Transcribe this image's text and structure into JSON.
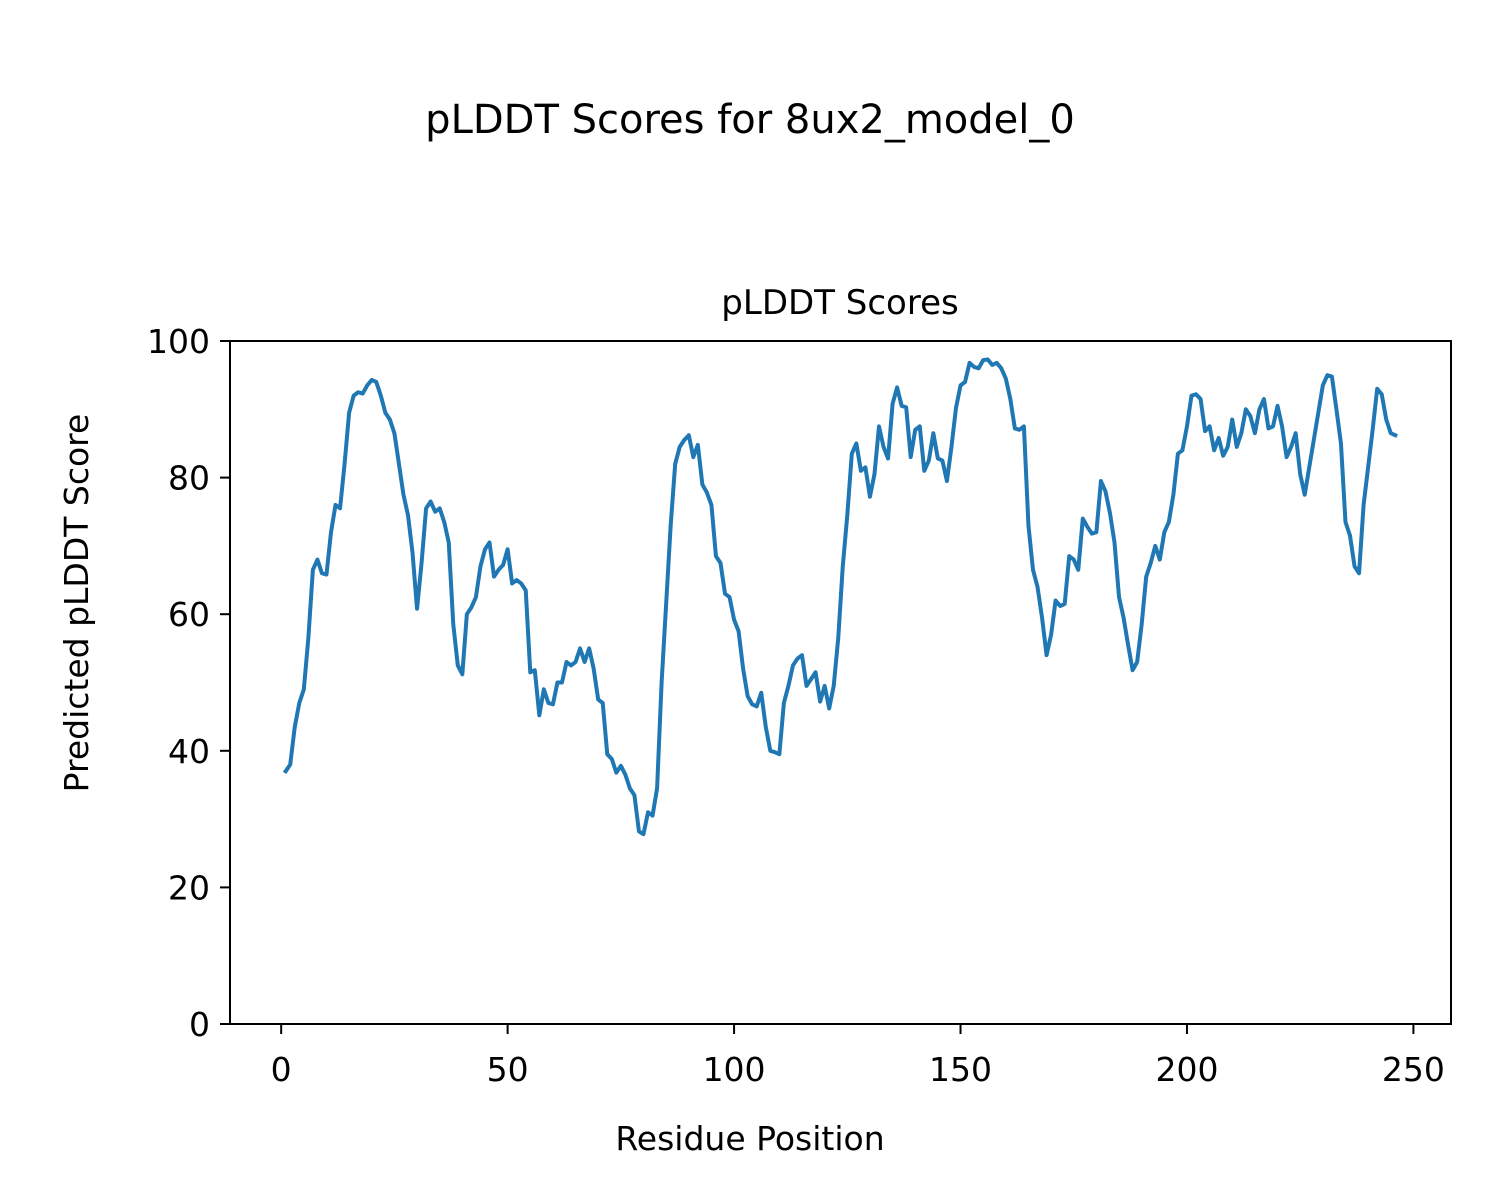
{
  "figure": {
    "suptitle": "pLDDT Scores for 8ux2_model_0"
  },
  "chart_data": {
    "type": "line",
    "title": "pLDDT Scores",
    "xlabel": "Residue Position",
    "ylabel": "Predicted pLDDT Score",
    "xlim": [
      -11.3,
      258.3
    ],
    "ylim": [
      0,
      100
    ],
    "xticks": [
      0,
      50,
      100,
      150,
      200,
      250
    ],
    "yticks": [
      0,
      20,
      40,
      60,
      80,
      100
    ],
    "grid": false,
    "legend": "none",
    "series": [
      {
        "color": "#1f77b4",
        "x_start": 1,
        "x_step": 1,
        "values": [
          37.0,
          38.0,
          43.5,
          47.0,
          49.0,
          56.5,
          66.5,
          68.0,
          66.0,
          65.8,
          72.0,
          76.0,
          75.5,
          82.0,
          89.5,
          92.0,
          92.5,
          92.3,
          93.5,
          94.3,
          94.0,
          92.0,
          89.5,
          88.5,
          86.5,
          82.0,
          77.5,
          74.5,
          69.0,
          60.8,
          67.5,
          75.5,
          76.5,
          75.0,
          75.5,
          73.5,
          70.5,
          58.5,
          52.5,
          51.2,
          60.0,
          61.0,
          62.5,
          67.0,
          69.5,
          70.5,
          65.5,
          66.5,
          67.2,
          69.5,
          64.5,
          65.0,
          64.5,
          63.5,
          51.5,
          51.8,
          45.2,
          49.0,
          47.0,
          46.8,
          50.0,
          50.0,
          53.0,
          52.5,
          53.0,
          55.0,
          53.0,
          55.0,
          52.0,
          47.5,
          47.0,
          39.5,
          38.8,
          36.8,
          37.8,
          36.5,
          34.5,
          33.5,
          28.2,
          27.8,
          31.0,
          30.5,
          34.5,
          50.0,
          61.5,
          73.0,
          82.0,
          84.5,
          85.5,
          86.2,
          83.0,
          84.8,
          79.0,
          77.8,
          76.0,
          68.5,
          67.5,
          63.0,
          62.5,
          59.2,
          57.5,
          52.0,
          48.0,
          46.8,
          46.5,
          48.5,
          43.5,
          40.0,
          39.8,
          39.5,
          47.0,
          49.5,
          52.5,
          53.5,
          54.0,
          49.5,
          50.5,
          51.5,
          47.2,
          49.5,
          46.2,
          49.5,
          56.5,
          67.0,
          74.5,
          83.5,
          85.0,
          81.0,
          81.5,
          77.2,
          80.5,
          87.5,
          84.5,
          82.8,
          90.8,
          93.2,
          90.5,
          90.3,
          83.0,
          87.0,
          87.5,
          81.0,
          82.5,
          86.5,
          82.8,
          82.5,
          79.5,
          84.5,
          90.2,
          93.5,
          94.0,
          96.8,
          96.2,
          96.0,
          97.2,
          97.3,
          96.5,
          96.8,
          96.0,
          94.5,
          91.5,
          87.2,
          87.0,
          87.5,
          73.0,
          66.5,
          64.0,
          59.5,
          54.0,
          57.0,
          62.0,
          61.2,
          61.5,
          68.5,
          68.0,
          66.5,
          74.0,
          72.8,
          71.8,
          72.0,
          79.5,
          78.0,
          74.8,
          70.5,
          62.5,
          59.5,
          55.5,
          51.8,
          53.0,
          58.5,
          65.5,
          67.5,
          70.0,
          68.0,
          72.0,
          73.5,
          77.5,
          83.5,
          84.0,
          87.5,
          92.0,
          92.2,
          91.5,
          86.8,
          87.5,
          84.0,
          85.8,
          83.2,
          84.5,
          88.5,
          84.5,
          86.5,
          90.0,
          89.0,
          86.5,
          90.0,
          91.5,
          87.2,
          87.5,
          90.5,
          87.5,
          83.0,
          84.5,
          86.5,
          80.5,
          77.5,
          81.5,
          85.5,
          89.5,
          93.5,
          95.0,
          94.8,
          90.0,
          85.0,
          73.5,
          71.5,
          67.0,
          66.0,
          76.0,
          81.5,
          87.0,
          93.0,
          92.2,
          88.5,
          86.5,
          86.2
        ]
      }
    ]
  }
}
